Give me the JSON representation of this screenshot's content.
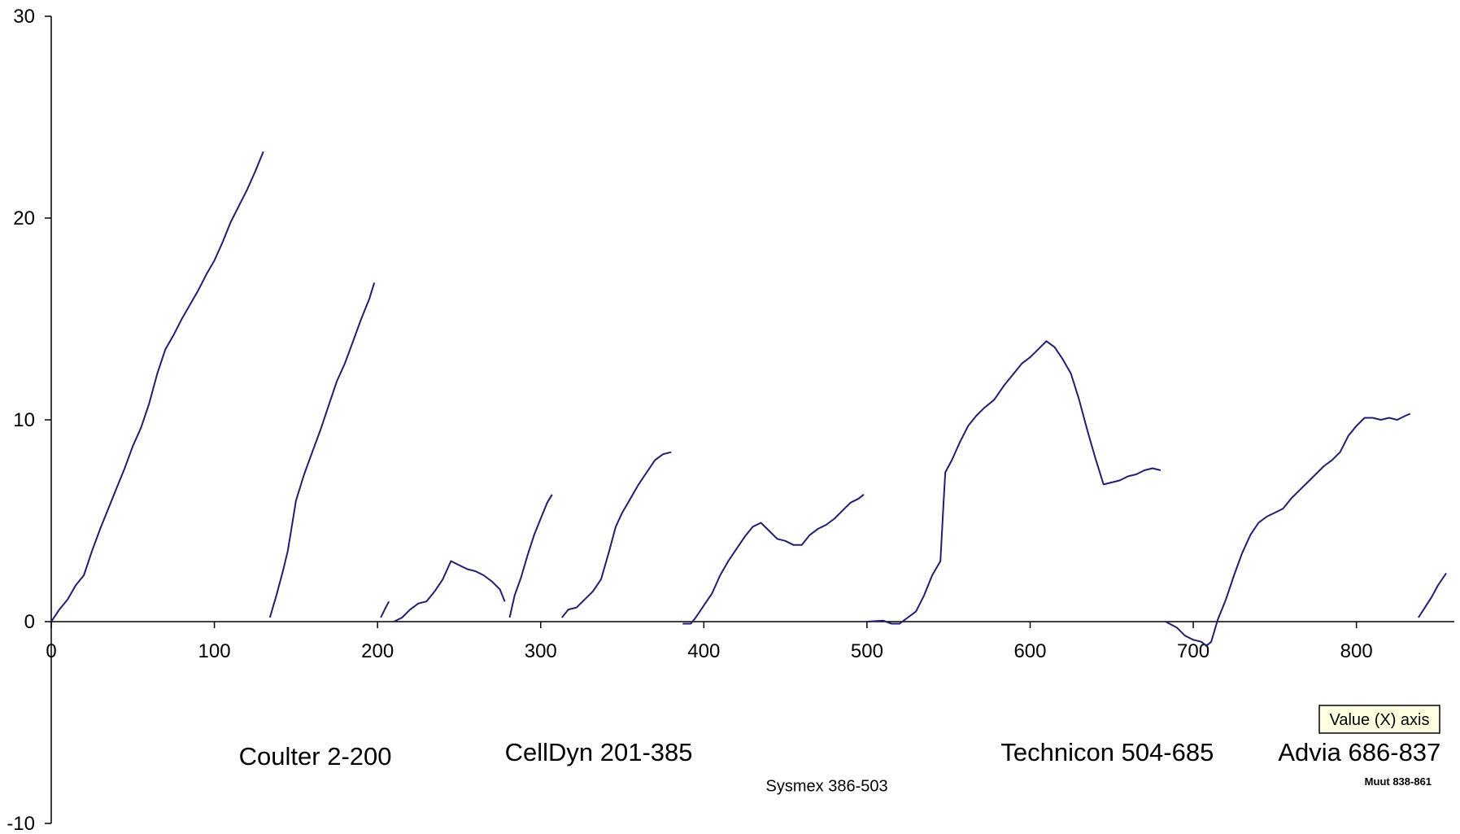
{
  "chart_data": {
    "type": "line",
    "title": "",
    "xlabel": "",
    "ylabel": "",
    "xlim": [
      0,
      860
    ],
    "ylim": [
      -10,
      30
    ],
    "x_ticks": [
      0,
      100,
      200,
      300,
      400,
      500,
      600,
      700,
      800
    ],
    "y_ticks": [
      -10,
      0,
      10,
      20,
      30
    ],
    "grid": false,
    "line_color": "#1f1f6e",
    "series": [
      {
        "segments": [
          [
            [
              0,
              0
            ],
            [
              5,
              0.6
            ],
            [
              10,
              1.1
            ],
            [
              15,
              1.8
            ],
            [
              20,
              2.3
            ],
            [
              25,
              3.5
            ],
            [
              30,
              4.6
            ],
            [
              35,
              5.6
            ],
            [
              40,
              6.6
            ],
            [
              45,
              7.6
            ],
            [
              50,
              8.7
            ],
            [
              55,
              9.6
            ],
            [
              60,
              10.8
            ],
            [
              65,
              12.3
            ],
            [
              70,
              13.5
            ],
            [
              75,
              14.2
            ],
            [
              80,
              15.0
            ],
            [
              85,
              15.7
            ],
            [
              90,
              16.4
            ],
            [
              95,
              17.2
            ],
            [
              100,
              17.9
            ],
            [
              105,
              18.8
            ],
            [
              110,
              19.8
            ],
            [
              115,
              20.6
            ],
            [
              120,
              21.4
            ],
            [
              125,
              22.3
            ],
            [
              130,
              23.3
            ]
          ],
          [
            [
              134,
              0.2
            ],
            [
              138,
              1.3
            ],
            [
              142,
              2.5
            ],
            [
              145,
              3.5
            ],
            [
              148,
              5.0
            ],
            [
              150,
              6.0
            ],
            [
              155,
              7.3
            ],
            [
              160,
              8.4
            ],
            [
              165,
              9.5
            ],
            [
              170,
              10.7
            ],
            [
              175,
              11.9
            ],
            [
              180,
              12.8
            ],
            [
              185,
              13.9
            ],
            [
              190,
              15.0
            ],
            [
              195,
              16.0
            ],
            [
              198,
              16.8
            ]
          ],
          [
            [
              202,
              0.2
            ],
            [
              205,
              0.7
            ],
            [
              207,
              1.0
            ]
          ],
          [
            [
              210,
              0
            ],
            [
              215,
              0.2
            ],
            [
              220,
              0.6
            ],
            [
              225,
              0.9
            ],
            [
              230,
              1.0
            ],
            [
              235,
              1.5
            ],
            [
              240,
              2.1
            ],
            [
              245,
              3.0
            ],
            [
              250,
              2.8
            ],
            [
              255,
              2.6
            ],
            [
              260,
              2.5
            ],
            [
              265,
              2.3
            ],
            [
              270,
              2.0
            ],
            [
              275,
              1.6
            ],
            [
              278,
              1.0
            ]
          ],
          [
            [
              281,
              0.2
            ],
            [
              284,
              1.3
            ],
            [
              288,
              2.2
            ],
            [
              292,
              3.3
            ],
            [
              296,
              4.3
            ],
            [
              300,
              5.1
            ],
            [
              304,
              5.9
            ],
            [
              307,
              6.3
            ]
          ],
          [
            [
              313,
              0.2
            ],
            [
              317,
              0.6
            ],
            [
              322,
              0.7
            ],
            [
              327,
              1.1
            ],
            [
              332,
              1.5
            ],
            [
              337,
              2.1
            ],
            [
              342,
              3.5
            ],
            [
              346,
              4.7
            ],
            [
              350,
              5.4
            ],
            [
              355,
              6.1
            ],
            [
              360,
              6.8
            ],
            [
              365,
              7.4
            ],
            [
              370,
              8.0
            ],
            [
              375,
              8.3
            ],
            [
              380,
              8.4
            ]
          ],
          [
            [
              387,
              -0.1
            ],
            [
              392,
              -0.1
            ],
            [
              395,
              0.2
            ],
            [
              400,
              0.8
            ],
            [
              405,
              1.4
            ],
            [
              410,
              2.3
            ],
            [
              415,
              3.0
            ],
            [
              420,
              3.6
            ],
            [
              425,
              4.2
            ],
            [
              430,
              4.7
            ],
            [
              435,
              4.9
            ],
            [
              440,
              4.5
            ],
            [
              445,
              4.1
            ],
            [
              450,
              4.0
            ],
            [
              455,
              3.8
            ],
            [
              460,
              3.8
            ],
            [
              465,
              4.3
            ],
            [
              470,
              4.6
            ],
            [
              475,
              4.8
            ],
            [
              480,
              5.1
            ],
            [
              485,
              5.5
            ],
            [
              490,
              5.9
            ],
            [
              495,
              6.1
            ],
            [
              498,
              6.3
            ]
          ],
          [
            [
              500,
              0
            ],
            [
              510,
              0.05
            ],
            [
              515,
              -0.1
            ],
            [
              520,
              -0.1
            ],
            [
              525,
              0.2
            ],
            [
              530,
              0.5
            ],
            [
              535,
              1.3
            ],
            [
              540,
              2.3
            ],
            [
              545,
              3.0
            ],
            [
              547,
              6.0
            ],
            [
              548,
              7.4
            ],
            [
              552,
              8.0
            ],
            [
              557,
              8.9
            ],
            [
              562,
              9.7
            ],
            [
              567,
              10.2
            ],
            [
              572,
              10.6
            ],
            [
              578,
              11.0
            ],
            [
              584,
              11.7
            ],
            [
              590,
              12.3
            ],
            [
              595,
              12.8
            ],
            [
              600,
              13.1
            ],
            [
              605,
              13.5
            ],
            [
              610,
              13.9
            ],
            [
              615,
              13.6
            ],
            [
              620,
              13.0
            ],
            [
              625,
              12.3
            ],
            [
              630,
              11.0
            ],
            [
              635,
              9.5
            ],
            [
              640,
              8.1
            ],
            [
              645,
              6.8
            ],
            [
              650,
              6.9
            ],
            [
              655,
              7.0
            ],
            [
              660,
              7.2
            ],
            [
              665,
              7.3
            ],
            [
              670,
              7.5
            ],
            [
              675,
              7.6
            ],
            [
              680,
              7.5
            ]
          ],
          [
            [
              683,
              0
            ],
            [
              690,
              -0.3
            ],
            [
              695,
              -0.7
            ],
            [
              700,
              -0.9
            ],
            [
              705,
              -1.0
            ],
            [
              708,
              -1.2
            ],
            [
              711,
              -1.0
            ],
            [
              715,
              0.1
            ],
            [
              720,
              1.1
            ],
            [
              725,
              2.3
            ],
            [
              730,
              3.4
            ],
            [
              735,
              4.3
            ],
            [
              740,
              4.9
            ],
            [
              745,
              5.2
            ],
            [
              750,
              5.4
            ],
            [
              755,
              5.6
            ],
            [
              760,
              6.1
            ],
            [
              765,
              6.5
            ],
            [
              770,
              6.9
            ],
            [
              775,
              7.3
            ],
            [
              780,
              7.7
            ],
            [
              785,
              8.0
            ],
            [
              790,
              8.4
            ],
            [
              795,
              9.2
            ],
            [
              800,
              9.7
            ],
            [
              805,
              10.1
            ],
            [
              810,
              10.1
            ],
            [
              815,
              10.0
            ],
            [
              820,
              10.1
            ],
            [
              825,
              10.0
            ],
            [
              830,
              10.2
            ],
            [
              833,
              10.3
            ]
          ],
          [
            [
              838,
              0.2
            ],
            [
              842,
              0.7
            ],
            [
              846,
              1.2
            ],
            [
              850,
              1.8
            ],
            [
              855,
              2.4
            ]
          ]
        ]
      }
    ],
    "annotations": [
      {
        "text": "Coulter 2-200",
        "x": 115,
        "y": -7.1,
        "size": "large"
      },
      {
        "text": "CellDyn 201-385",
        "x": 278,
        "y": -6.9,
        "size": "large"
      },
      {
        "text": "Technicon 504-685",
        "x": 582,
        "y": -6.9,
        "size": "large"
      },
      {
        "text": "Advia 686-837",
        "x": 752,
        "y": -6.9,
        "size": "large"
      },
      {
        "text": "Sysmex 386-503",
        "x": 438,
        "y": -8.4,
        "size": "small"
      },
      {
        "text": "Muut 838-861",
        "x": 805,
        "y": -8.1,
        "size": "tiny"
      }
    ],
    "tooltip": {
      "text": "Value (X) axis",
      "background": "#ffffe1"
    }
  }
}
